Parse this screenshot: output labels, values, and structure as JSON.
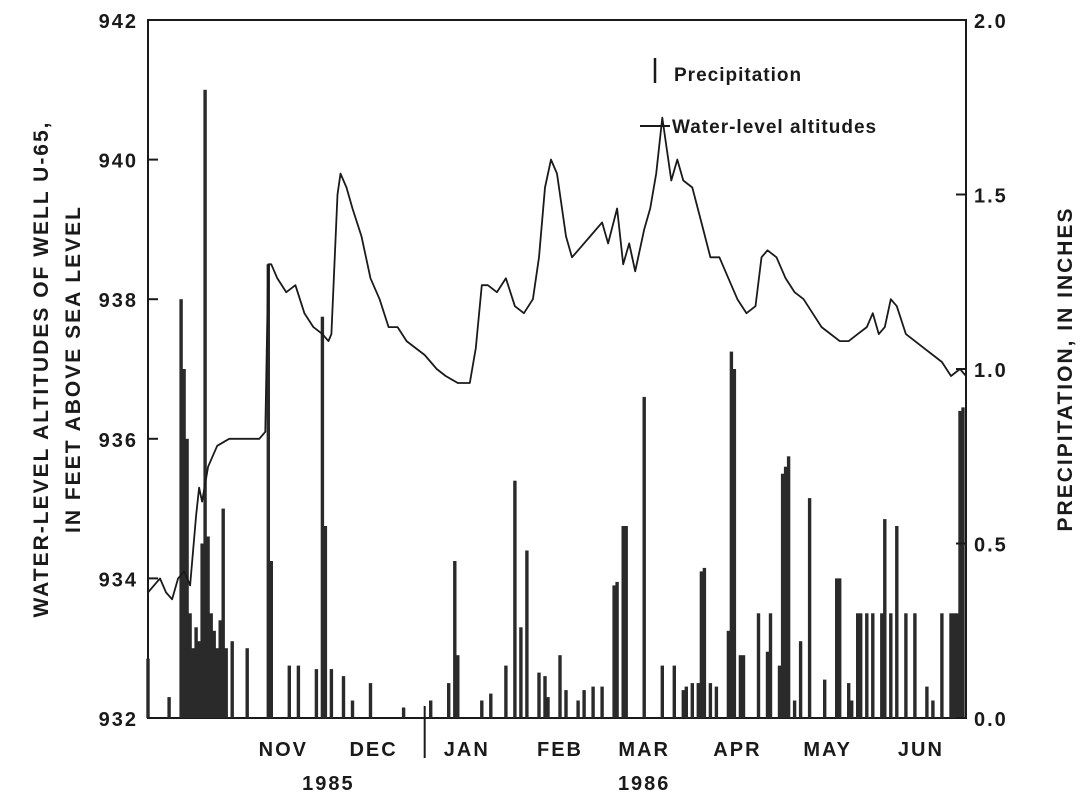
{
  "chart_data": {
    "type": "bar+line",
    "x_axis": {
      "start_date": "1985-10-01",
      "end_date": "1986-06-30",
      "month_labels": [
        "NOV",
        "DEC",
        "JAN",
        "FEB",
        "MAR",
        "APR",
        "MAY",
        "JUN"
      ],
      "month_label_dates": [
        "1985-11-15",
        "1985-12-15",
        "1986-01-15",
        "1986-02-15",
        "1986-03-15",
        "1986-04-15",
        "1986-05-15",
        "1986-06-15"
      ],
      "year_labels": [
        {
          "text": "1985",
          "date": "1985-11-30"
        },
        {
          "text": "1986",
          "date": "1986-03-15"
        }
      ],
      "year_divider_date": "1986-01-01"
    },
    "y_left": {
      "label_line1": "WATER-LEVEL ALTITUDES OF WELL U-65,",
      "label_line2": "IN FEET ABOVE SEA LEVEL",
      "range": [
        932,
        942
      ],
      "ticks": [
        "932",
        "934",
        "936",
        "938",
        "940",
        "942"
      ]
    },
    "y_right": {
      "label": "PRECIPITATION, IN INCHES",
      "range": [
        0,
        2
      ],
      "ticks": [
        "0.0",
        "0.5",
        "1.0",
        "1.5",
        "2.0"
      ]
    },
    "legend": {
      "position": "top-right",
      "precipitation_label": "Precipitation",
      "water_level_label": "Water-level altitudes"
    },
    "series": [
      {
        "name": "Water-level altitudes",
        "type": "line",
        "axis": "left",
        "points": [
          [
            "1985-10-01",
            933.8
          ],
          [
            "1985-10-03",
            933.9
          ],
          [
            "1985-10-05",
            934.0
          ],
          [
            "1985-10-07",
            933.8
          ],
          [
            "1985-10-09",
            933.7
          ],
          [
            "1985-10-11",
            934.0
          ],
          [
            "1985-10-13",
            934.1
          ],
          [
            "1985-10-15",
            933.9
          ],
          [
            "1985-10-17",
            934.9
          ],
          [
            "1985-10-18",
            935.3
          ],
          [
            "1985-10-19",
            935.1
          ],
          [
            "1985-10-21",
            935.6
          ],
          [
            "1985-10-24",
            935.9
          ],
          [
            "1985-10-28",
            936.0
          ],
          [
            "1985-11-02",
            936.0
          ],
          [
            "1985-11-07",
            936.0
          ],
          [
            "1985-11-09",
            936.1
          ],
          [
            "1985-11-10",
            938.5
          ],
          [
            "1985-11-11",
            938.5
          ],
          [
            "1985-11-13",
            938.3
          ],
          [
            "1985-11-16",
            938.1
          ],
          [
            "1985-11-19",
            938.2
          ],
          [
            "1985-11-22",
            937.8
          ],
          [
            "1985-11-25",
            937.6
          ],
          [
            "1985-11-28",
            937.5
          ],
          [
            "1985-11-30",
            937.4
          ],
          [
            "1985-12-01",
            937.5
          ],
          [
            "1985-12-03",
            939.5
          ],
          [
            "1985-12-04",
            939.8
          ],
          [
            "1985-12-06",
            939.6
          ],
          [
            "1985-12-08",
            939.3
          ],
          [
            "1985-12-11",
            938.9
          ],
          [
            "1985-12-14",
            938.3
          ],
          [
            "1985-12-17",
            938.0
          ],
          [
            "1985-12-20",
            937.6
          ],
          [
            "1985-12-23",
            937.6
          ],
          [
            "1985-12-26",
            937.4
          ],
          [
            "1985-12-29",
            937.3
          ],
          [
            "1986-01-01",
            937.2
          ],
          [
            "1986-01-05",
            937.0
          ],
          [
            "1986-01-08",
            936.9
          ],
          [
            "1986-01-12",
            936.8
          ],
          [
            "1986-01-16",
            936.8
          ],
          [
            "1986-01-18",
            937.3
          ],
          [
            "1986-01-20",
            938.2
          ],
          [
            "1986-01-22",
            938.2
          ],
          [
            "1986-01-25",
            938.1
          ],
          [
            "1986-01-28",
            938.3
          ],
          [
            "1986-01-31",
            937.9
          ],
          [
            "1986-02-03",
            937.8
          ],
          [
            "1986-02-06",
            938.0
          ],
          [
            "1986-02-08",
            938.6
          ],
          [
            "1986-02-10",
            939.6
          ],
          [
            "1986-02-12",
            940.0
          ],
          [
            "1986-02-14",
            939.8
          ],
          [
            "1986-02-17",
            938.9
          ],
          [
            "1986-02-19",
            938.6
          ],
          [
            "1986-02-21",
            938.7
          ],
          [
            "1986-02-25",
            938.9
          ],
          [
            "1986-03-01",
            939.1
          ],
          [
            "1986-03-03",
            938.8
          ],
          [
            "1986-03-06",
            939.3
          ],
          [
            "1986-03-08",
            938.5
          ],
          [
            "1986-03-10",
            938.8
          ],
          [
            "1986-03-12",
            938.4
          ],
          [
            "1986-03-15",
            939.0
          ],
          [
            "1986-03-17",
            939.3
          ],
          [
            "1986-03-19",
            939.8
          ],
          [
            "1986-03-21",
            940.6
          ],
          [
            "1986-03-22",
            940.3
          ],
          [
            "1986-03-24",
            939.7
          ],
          [
            "1986-03-26",
            940.0
          ],
          [
            "1986-03-28",
            939.7
          ],
          [
            "1986-03-31",
            939.6
          ],
          [
            "1986-04-03",
            939.1
          ],
          [
            "1986-04-06",
            938.6
          ],
          [
            "1986-04-09",
            938.6
          ],
          [
            "1986-04-12",
            938.3
          ],
          [
            "1986-04-15",
            938.0
          ],
          [
            "1986-04-18",
            937.8
          ],
          [
            "1986-04-21",
            937.9
          ],
          [
            "1986-04-23",
            938.6
          ],
          [
            "1986-04-25",
            938.7
          ],
          [
            "1986-04-28",
            938.6
          ],
          [
            "1986-05-01",
            938.3
          ],
          [
            "1986-05-04",
            938.1
          ],
          [
            "1986-05-07",
            938.0
          ],
          [
            "1986-05-10",
            937.8
          ],
          [
            "1986-05-13",
            937.6
          ],
          [
            "1986-05-16",
            937.5
          ],
          [
            "1986-05-19",
            937.4
          ],
          [
            "1986-05-22",
            937.4
          ],
          [
            "1986-05-25",
            937.5
          ],
          [
            "1986-05-28",
            937.6
          ],
          [
            "1986-05-30",
            937.8
          ],
          [
            "1986-06-01",
            937.5
          ],
          [
            "1986-06-03",
            937.6
          ],
          [
            "1986-06-05",
            938.0
          ],
          [
            "1986-06-07",
            937.9
          ],
          [
            "1986-06-10",
            937.5
          ],
          [
            "1986-06-13",
            937.4
          ],
          [
            "1986-06-16",
            937.3
          ],
          [
            "1986-06-19",
            937.2
          ],
          [
            "1986-06-22",
            937.1
          ],
          [
            "1986-06-25",
            936.9
          ],
          [
            "1986-06-28",
            937.0
          ],
          [
            "1986-06-30",
            936.9
          ]
        ]
      },
      {
        "name": "Precipitation",
        "type": "bar",
        "axis": "right",
        "points": [
          [
            "1985-10-01",
            0.17
          ],
          [
            "1985-10-08",
            0.06
          ],
          [
            "1985-10-12",
            1.2
          ],
          [
            "1985-10-13",
            1.0
          ],
          [
            "1985-10-14",
            0.8
          ],
          [
            "1985-10-15",
            0.3
          ],
          [
            "1985-10-16",
            0.2
          ],
          [
            "1985-10-17",
            0.26
          ],
          [
            "1985-10-18",
            0.22
          ],
          [
            "1985-10-19",
            0.5
          ],
          [
            "1985-10-20",
            1.8
          ],
          [
            "1985-10-21",
            0.52
          ],
          [
            "1985-10-22",
            0.3
          ],
          [
            "1985-10-23",
            0.25
          ],
          [
            "1985-10-24",
            0.2
          ],
          [
            "1985-10-25",
            0.28
          ],
          [
            "1985-10-26",
            0.6
          ],
          [
            "1985-10-27",
            0.2
          ],
          [
            "1985-10-29",
            0.22
          ],
          [
            "1985-11-03",
            0.2
          ],
          [
            "1985-11-10",
            1.3
          ],
          [
            "1985-11-11",
            0.45
          ],
          [
            "1985-11-17",
            0.15
          ],
          [
            "1985-11-20",
            0.15
          ],
          [
            "1985-11-26",
            0.14
          ],
          [
            "1985-11-28",
            1.15
          ],
          [
            "1985-11-29",
            0.55
          ],
          [
            "1985-12-01",
            0.14
          ],
          [
            "1985-12-05",
            0.12
          ],
          [
            "1985-12-08",
            0.05
          ],
          [
            "1985-12-14",
            0.1
          ],
          [
            "1985-12-25",
            0.03
          ],
          [
            "1986-01-03",
            0.05
          ],
          [
            "1986-01-09",
            0.1
          ],
          [
            "1986-01-11",
            0.45
          ],
          [
            "1986-01-12",
            0.18
          ],
          [
            "1986-01-20",
            0.05
          ],
          [
            "1986-01-23",
            0.07
          ],
          [
            "1986-01-28",
            0.15
          ],
          [
            "1986-01-31",
            0.68
          ],
          [
            "1986-02-02",
            0.26
          ],
          [
            "1986-02-04",
            0.48
          ],
          [
            "1986-02-08",
            0.13
          ],
          [
            "1986-02-10",
            0.12
          ],
          [
            "1986-02-11",
            0.06
          ],
          [
            "1986-02-15",
            0.18
          ],
          [
            "1986-02-17",
            0.08
          ],
          [
            "1986-02-21",
            0.05
          ],
          [
            "1986-02-23",
            0.08
          ],
          [
            "1986-02-26",
            0.09
          ],
          [
            "1986-03-01",
            0.09
          ],
          [
            "1986-03-05",
            0.38
          ],
          [
            "1986-03-06",
            0.39
          ],
          [
            "1986-03-08",
            0.55
          ],
          [
            "1986-03-09",
            0.55
          ],
          [
            "1986-03-15",
            0.92
          ],
          [
            "1986-03-21",
            0.15
          ],
          [
            "1986-03-25",
            0.15
          ],
          [
            "1986-03-28",
            0.08
          ],
          [
            "1986-03-29",
            0.09
          ],
          [
            "1986-03-31",
            0.1
          ],
          [
            "1986-04-02",
            0.1
          ],
          [
            "1986-04-03",
            0.42
          ],
          [
            "1986-04-04",
            0.43
          ],
          [
            "1986-04-06",
            0.1
          ],
          [
            "1986-04-08",
            0.09
          ],
          [
            "1986-04-12",
            0.25
          ],
          [
            "1986-04-13",
            1.05
          ],
          [
            "1986-04-14",
            1.0
          ],
          [
            "1986-04-16",
            0.18
          ],
          [
            "1986-04-17",
            0.18
          ],
          [
            "1986-04-22",
            0.3
          ],
          [
            "1986-04-25",
            0.19
          ],
          [
            "1986-04-26",
            0.3
          ],
          [
            "1986-04-29",
            0.15
          ],
          [
            "1986-04-30",
            0.7
          ],
          [
            "1986-05-01",
            0.72
          ],
          [
            "1986-05-02",
            0.75
          ],
          [
            "1986-05-04",
            0.05
          ],
          [
            "1986-05-06",
            0.22
          ],
          [
            "1986-05-09",
            0.63
          ],
          [
            "1986-05-14",
            0.11
          ],
          [
            "1986-05-18",
            0.4
          ],
          [
            "1986-05-19",
            0.4
          ],
          [
            "1986-05-22",
            0.1
          ],
          [
            "1986-05-23",
            0.05
          ],
          [
            "1986-05-25",
            0.3
          ],
          [
            "1986-05-26",
            0.3
          ],
          [
            "1986-05-28",
            0.3
          ],
          [
            "1986-05-30",
            0.3
          ],
          [
            "1986-06-02",
            0.3
          ],
          [
            "1986-06-03",
            0.57
          ],
          [
            "1986-06-05",
            0.3
          ],
          [
            "1986-06-07",
            0.55
          ],
          [
            "1986-06-10",
            0.3
          ],
          [
            "1986-06-13",
            0.3
          ],
          [
            "1986-06-17",
            0.09
          ],
          [
            "1986-06-19",
            0.05
          ],
          [
            "1986-06-22",
            0.3
          ],
          [
            "1986-06-25",
            0.3
          ],
          [
            "1986-06-26",
            0.3
          ],
          [
            "1986-06-27",
            0.3
          ],
          [
            "1986-06-28",
            0.88
          ],
          [
            "1986-06-29",
            0.89
          ]
        ]
      }
    ]
  }
}
